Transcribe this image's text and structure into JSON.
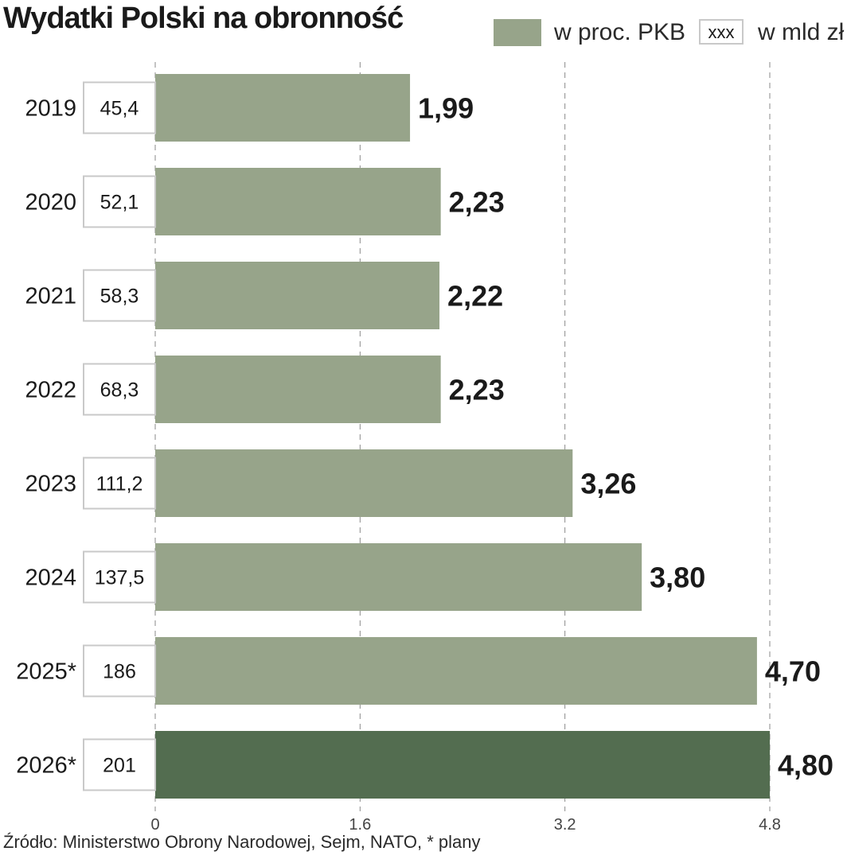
{
  "chart_data": {
    "type": "bar",
    "orientation": "horizontal",
    "title": "Wydatki Polski na obronność",
    "categories": [
      "2019",
      "2020",
      "2021",
      "2022",
      "2023",
      "2024",
      "2025*",
      "2026*"
    ],
    "series": [
      {
        "name": "w proc. PKB",
        "values": [
          1.99,
          2.23,
          2.22,
          2.23,
          3.26,
          3.8,
          4.7,
          4.8
        ],
        "value_labels": [
          "1,99",
          "2,23",
          "2,22",
          "2,23",
          "3,26",
          "3,80",
          "4,70",
          "4,80"
        ]
      },
      {
        "name": "w mld zł",
        "values": [
          45.4,
          52.1,
          58.3,
          68.3,
          111.2,
          137.5,
          186,
          201
        ],
        "value_labels": [
          "45,4",
          "52,1",
          "58,3",
          "68,3",
          "111,2",
          "137,5",
          "186",
          "201"
        ]
      }
    ],
    "xlim": [
      0,
      4.8
    ],
    "x_ticks": [
      "0",
      "1.6",
      "3.2",
      "4.8"
    ],
    "grid": true,
    "legend_position": "top-right",
    "bar_color": "#97a48a",
    "highlight_color": "#536d50",
    "highlight_category": "2026*",
    "source": "Źródło: Ministerstwo Obrony Narodowej, Sejm, NATO, * plany"
  },
  "legend": {
    "pkb_label": "w proc. PKB",
    "mld_box": "xxx",
    "mld_label": "w mld zł"
  }
}
